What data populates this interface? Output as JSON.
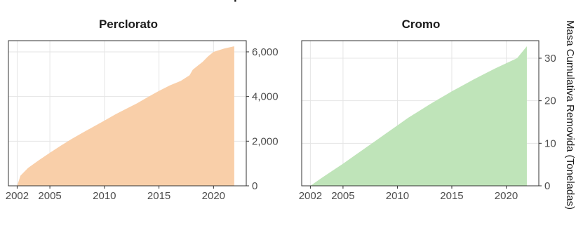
{
  "chart_data": [
    {
      "type": "area",
      "title": "Perclorato",
      "color": "#f9cfa9",
      "x": [
        2002,
        2002.3,
        2003,
        2004,
        2005,
        2006,
        2007,
        2008,
        2009,
        2010,
        2011,
        2012,
        2013,
        2014,
        2015,
        2016,
        2017,
        2017.8,
        2018.1,
        2018.6,
        2019,
        2019.5,
        2020,
        2021,
        2021.9
      ],
      "y": [
        0,
        450,
        800,
        1150,
        1480,
        1800,
        2100,
        2380,
        2650,
        2920,
        3200,
        3450,
        3700,
        3980,
        4250,
        4500,
        4700,
        4950,
        5200,
        5400,
        5550,
        5800,
        6000,
        6150,
        6250
      ],
      "xlim": [
        2001.2,
        2023
      ],
      "ylim": [
        0,
        6250
      ],
      "xticks": [
        "2002",
        "2005",
        "2010",
        "2015",
        "2020"
      ],
      "yticks": [
        "0",
        "2,000",
        "4,000",
        "6,000"
      ],
      "y_axis_side": "right",
      "grid": true
    },
    {
      "type": "area",
      "title": "Cromo",
      "color": "#bfe4b9",
      "x": [
        2002,
        2003,
        2004,
        2005,
        2006,
        2007,
        2008,
        2009,
        2010,
        2011,
        2012,
        2013,
        2014,
        2015,
        2016,
        2017,
        2018,
        2019,
        2020,
        2021,
        2021.9
      ],
      "y": [
        0,
        1.8,
        3.5,
        5.2,
        7.0,
        8.8,
        10.6,
        12.4,
        14.2,
        16.0,
        17.6,
        19.2,
        20.7,
        22.2,
        23.6,
        25.0,
        26.3,
        27.6,
        28.8,
        30.0,
        32.8
      ],
      "xlim": [
        2001.2,
        2023
      ],
      "ylim": [
        0,
        32.8
      ],
      "xticks": [
        "2002",
        "2005",
        "2010",
        "2015",
        "2020"
      ],
      "yticks": [
        "0",
        "10",
        "20",
        "30"
      ],
      "y_axis_side": "right",
      "grid": true
    }
  ],
  "y_axis_label": "Masa Cumulativa Removida (Toneladas)"
}
